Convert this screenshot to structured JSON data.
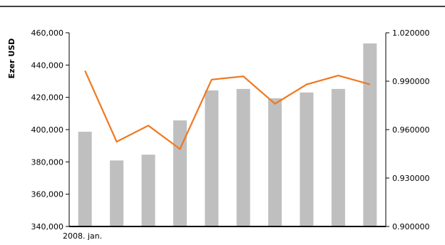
{
  "colors": {
    "bar": "#bfbfbf",
    "line": "#f07820",
    "axis": "#000000",
    "top_rule": "#000000"
  },
  "chart_data": {
    "type": "bar",
    "combo": "bar+line, dual y-axis",
    "categories": [
      "2008. jan.",
      "",
      "",
      "",
      "",
      "",
      "",
      "",
      "",
      ""
    ],
    "series": [
      {
        "type": "bar",
        "axis": "left",
        "values": [
          398700,
          380900,
          384500,
          405700,
          424300,
          425200,
          419400,
          423000,
          425200,
          453400
        ]
      },
      {
        "type": "line",
        "axis": "right",
        "values": [
          0.9965,
          0.9525,
          0.9625,
          0.948,
          0.991,
          0.993,
          0.976,
          0.988,
          0.9935,
          0.988
        ]
      }
    ],
    "y_left": {
      "label": "Ezer USD",
      "min": 340000,
      "max": 460000,
      "ticks": [
        "340,000",
        "360,000",
        "380,000",
        "400,000",
        "420,000",
        "440,000",
        "460,000"
      ]
    },
    "y_right": {
      "min": 0.9,
      "max": 1.02,
      "ticks": [
        "0.900000",
        "0.930000",
        "0.960000",
        "0.990000",
        "1.020000"
      ]
    },
    "grid": false,
    "legend": "none"
  }
}
